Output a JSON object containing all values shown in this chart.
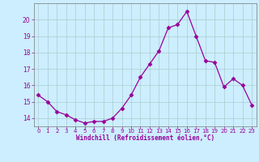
{
  "x": [
    0,
    1,
    2,
    3,
    4,
    5,
    6,
    7,
    8,
    9,
    10,
    11,
    12,
    13,
    14,
    15,
    16,
    17,
    18,
    19,
    20,
    21,
    22,
    23
  ],
  "y": [
    15.4,
    15.0,
    14.4,
    14.2,
    13.9,
    13.7,
    13.8,
    13.8,
    14.0,
    14.6,
    15.4,
    16.5,
    17.3,
    18.1,
    19.5,
    19.7,
    20.5,
    19.0,
    17.5,
    17.4,
    15.9,
    16.4,
    16.0,
    14.8
  ],
  "line_color": "#990099",
  "marker": "D",
  "marker_size": 2.5,
  "bg_color": "#cceeff",
  "grid_color": "#aacccc",
  "xlabel": "Windchill (Refroidissement éolien,°C)",
  "xlabel_color": "#990099",
  "tick_color": "#990099",
  "ylim": [
    13.5,
    21.0
  ],
  "xlim": [
    -0.5,
    23.5
  ],
  "yticks": [
    14,
    15,
    16,
    17,
    18,
    19,
    20
  ],
  "xticks": [
    0,
    1,
    2,
    3,
    4,
    5,
    6,
    7,
    8,
    9,
    10,
    11,
    12,
    13,
    14,
    15,
    16,
    17,
    18,
    19,
    20,
    21,
    22,
    23
  ],
  "figsize": [
    3.2,
    2.0
  ],
  "dpi": 100
}
